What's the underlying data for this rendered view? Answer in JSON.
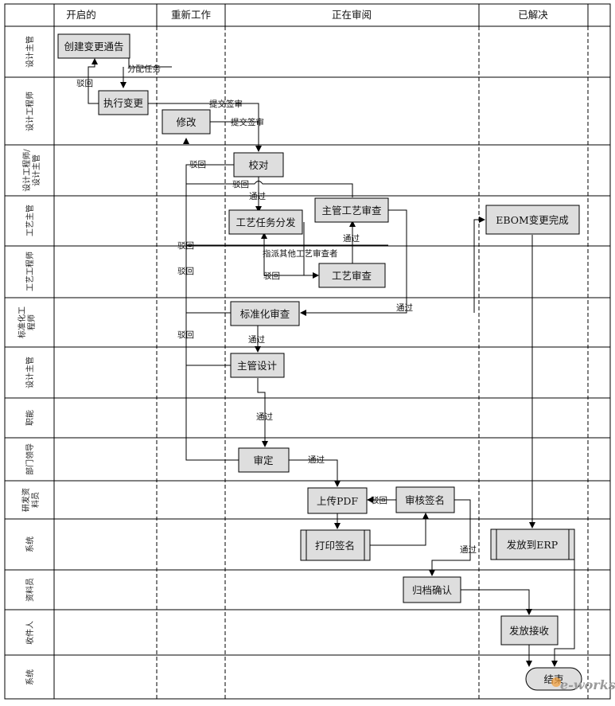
{
  "columns": [
    "开启的",
    "重新工作",
    "正在审阅",
    "已解决"
  ],
  "lanes": [
    "设计主管",
    "设计工程师",
    "设计工程师/设计主管",
    "工艺主管",
    "工艺工程师",
    "标准化工程师",
    "设计主管",
    "职能",
    "部门领导",
    "研发资料员",
    "系统",
    "资料员",
    "收件人",
    "系统"
  ],
  "nodes": {
    "create": "创建变更通告",
    "execute": "执行变更",
    "modify": "修改",
    "proofread": "校对",
    "proc_assign": "工艺任务分发",
    "chief_proc": "主管工艺审查",
    "proc_review": "工艺审查",
    "std_review": "标准化审查",
    "chief_design": "主管设计",
    "approve": "审定",
    "upload_pdf": "上传PDF",
    "audit_sign": "审核签名",
    "print_sign": "打印签名",
    "archive": "归档确认",
    "ebom": "EBOM变更完成",
    "release_erp": "发放到ERP",
    "receive": "发放接收",
    "end": "结束"
  },
  "edge_labels": {
    "assign_task": "分配任务",
    "reject": "驳回",
    "submit_sign": "提交签审",
    "pass": "通过",
    "assign_other": "指派其他工艺审查者"
  },
  "watermark": "e-works"
}
